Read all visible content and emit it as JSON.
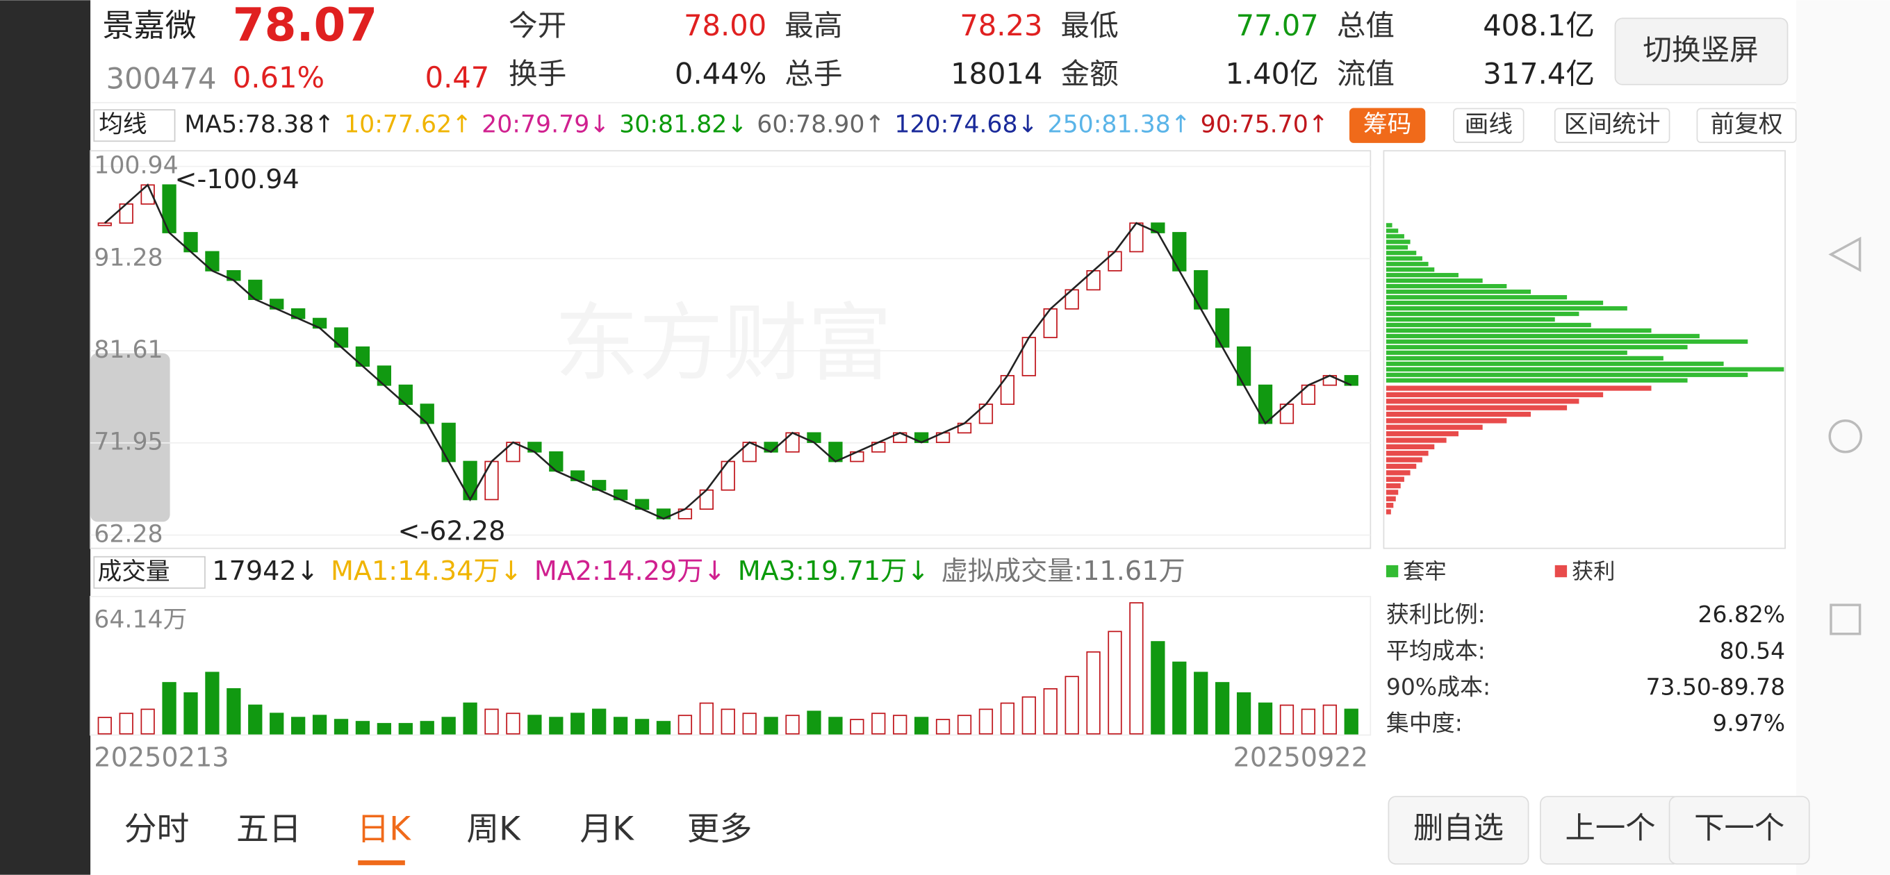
{
  "header": {
    "name": "景嘉微",
    "price": "78.07",
    "code": "300474",
    "pct": "0.61%",
    "change": "0.47",
    "fields": [
      [
        "今开",
        "78.00",
        "red"
      ],
      [
        "最高",
        "78.23",
        "red"
      ],
      [
        "最低",
        "77.07",
        "green"
      ],
      [
        "总值",
        "408.1亿",
        "black"
      ],
      [
        "换手",
        "0.44%",
        "black"
      ],
      [
        "总手",
        "18014",
        "black"
      ],
      [
        "金额",
        "1.40亿",
        "black"
      ],
      [
        "流值",
        "317.4亿",
        "black"
      ]
    ],
    "rotate_button": "切换竖屏"
  },
  "ma_bar": {
    "selector": "均线",
    "items": [
      [
        "MA5:78.38↑",
        "#222"
      ],
      [
        "10:77.62↑",
        "#f0b400"
      ],
      [
        "20:79.79↓",
        "#d0208f"
      ],
      [
        "30:81.82↓",
        "#0a9a0a"
      ],
      [
        "60:78.90↑",
        "#666"
      ],
      [
        "120:74.68↓",
        "#1a2a9a"
      ],
      [
        "250:81.38↑",
        "#5ab4e8"
      ],
      [
        "90:75.70↑",
        "#c0161c"
      ]
    ],
    "buttons": [
      "筹码",
      "画线",
      "区间统计",
      "前复权"
    ]
  },
  "price": {
    "ylim": [
      62.28,
      100.94
    ],
    "yticks": [
      100.94,
      91.28,
      81.61,
      71.95,
      62.28
    ],
    "high_note": "<-100.94",
    "low_note": "<-62.28",
    "watermark": "东方财富",
    "values": [
      95,
      97,
      99,
      94,
      92,
      90,
      89,
      87,
      86,
      85,
      84,
      82,
      80,
      78,
      76,
      74,
      70,
      66,
      70,
      72,
      71,
      69,
      68,
      67,
      66,
      65,
      64,
      65,
      67,
      70,
      72,
      71,
      73,
      72,
      70,
      71,
      72,
      73,
      72,
      73,
      74,
      76,
      79,
      83,
      86,
      88,
      90,
      92,
      95,
      94,
      90,
      86,
      82,
      78,
      74,
      76,
      78,
      79,
      78
    ]
  },
  "volume": {
    "selector": "成交量",
    "items": [
      [
        "17942↓",
        "#222"
      ],
      [
        "MA1:14.34万↓",
        "#f0b400"
      ],
      [
        "MA2:14.29万↓",
        "#d0208f"
      ],
      [
        "MA3:19.71万↓",
        "#0a9a0a"
      ],
      [
        "虚拟成交量:11.61万",
        "#777"
      ]
    ],
    "ylim": [
      0,
      64.14
    ],
    "top_label": "64.14万",
    "values": [
      8,
      10,
      12,
      25,
      20,
      30,
      22,
      14,
      10,
      8,
      9,
      7,
      6,
      5,
      5,
      6,
      8,
      15,
      12,
      10,
      9,
      8,
      10,
      12,
      8,
      7,
      6,
      9,
      15,
      12,
      10,
      8,
      9,
      11,
      8,
      7,
      10,
      9,
      8,
      7,
      9,
      12,
      15,
      18,
      22,
      28,
      40,
      50,
      64,
      45,
      35,
      30,
      25,
      20,
      15,
      14,
      12,
      14,
      12
    ]
  },
  "dates": [
    "20250213",
    "20250922"
  ],
  "chips": {
    "legend": [
      "套牢",
      "获利"
    ],
    "trapped": [
      5,
      10,
      15,
      20,
      18,
      25,
      30,
      35,
      40,
      60,
      80,
      100,
      120,
      150,
      180,
      200,
      160,
      140,
      170,
      220,
      260,
      300,
      250,
      200,
      230,
      280,
      330,
      300,
      250
    ],
    "profit": [
      220,
      180,
      160,
      150,
      120,
      100,
      80,
      60,
      50,
      40,
      35,
      30,
      25,
      20,
      15,
      12,
      10,
      8,
      6,
      4
    ],
    "stats": [
      [
        "获利比例:",
        "26.82%"
      ],
      [
        "平均成本:",
        "80.54"
      ],
      [
        "90%成本:",
        "73.50-89.78"
      ],
      [
        "集中度:",
        "9.97%"
      ]
    ]
  },
  "tabs": {
    "items": [
      "分时",
      "五日",
      "日K",
      "周K",
      "月K",
      "更多"
    ],
    "active": 2
  },
  "actions": [
    "删自选",
    "上一个",
    "下一个"
  ]
}
